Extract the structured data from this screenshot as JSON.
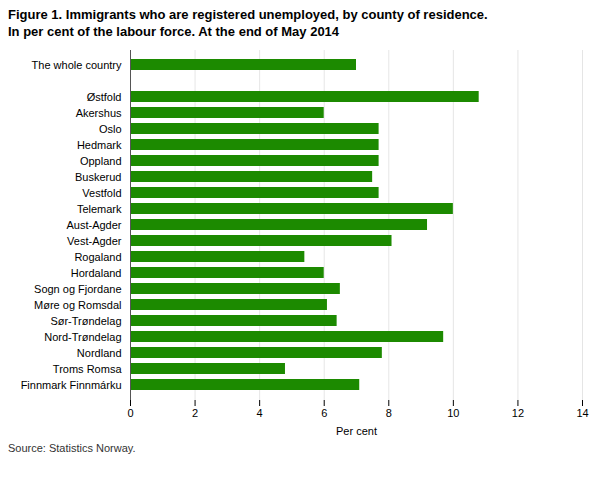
{
  "chart_data": {
    "type": "bar",
    "orientation": "horizontal",
    "title": "Figure 1. Immigrants who are registered unemployed, by county of residence.",
    "subtitle": "In per cent of the labour force. At the end of May 2014",
    "xlabel": "Per cent",
    "source": "Source: Statistics Norway.",
    "categories": [
      "Finnmark Finnmárku",
      "Troms Romsa",
      "Nordland",
      "Nord-Trøndelag",
      "Sør-Trøndelag",
      "Møre og Romsdal",
      "Sogn og Fjordane",
      "Hordaland",
      "Rogaland",
      "Vest-Agder",
      "Aust-Agder",
      "Telemark",
      "Vestfold",
      "Buskerud",
      "Oppland",
      "Hedmark",
      "Oslo",
      "Akershus",
      "Østfold",
      null,
      "The whole country"
    ],
    "values": [
      7.1,
      4.8,
      7.8,
      9.7,
      6.4,
      6.1,
      6.5,
      6.0,
      5.4,
      8.1,
      9.2,
      10.0,
      7.7,
      7.5,
      7.7,
      7.7,
      7.7,
      6.0,
      10.8,
      0,
      7.0
    ],
    "color": "#1c8a00",
    "xlim": [
      0,
      14
    ],
    "xticks": [
      0,
      2,
      4,
      6,
      8,
      10,
      12,
      14
    ],
    "grid": true
  }
}
